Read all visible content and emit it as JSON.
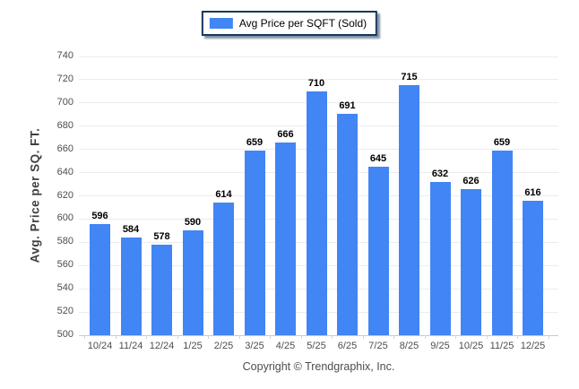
{
  "legend": {
    "label": "Avg Price per SQFT (Sold)",
    "swatch_color": "#4285F4"
  },
  "axes": {
    "y_title": "Avg. Price per SQ. FT."
  },
  "footer": {
    "copyright": "Copyright © Trendgraphix, Inc."
  },
  "chart_data": {
    "type": "bar",
    "title": "",
    "xlabel": "",
    "ylabel": "Avg. Price per SQ. FT.",
    "legend": [
      "Avg Price per SQFT (Sold)"
    ],
    "legend_position": "top-center",
    "grid": "horizontal",
    "categories": [
      "10/24",
      "11/24",
      "12/24",
      "1/25",
      "2/25",
      "3/25",
      "4/25",
      "5/25",
      "6/25",
      "7/25",
      "8/25",
      "9/25",
      "10/25",
      "11/25",
      "12/25"
    ],
    "values": [
      596,
      584,
      578,
      590,
      614,
      659,
      666,
      710,
      691,
      645,
      715,
      632,
      626,
      659,
      616
    ],
    "ylim": [
      500,
      740
    ],
    "ytick_step": 20,
    "bar_color": "#4285F4",
    "value_labels": true
  }
}
